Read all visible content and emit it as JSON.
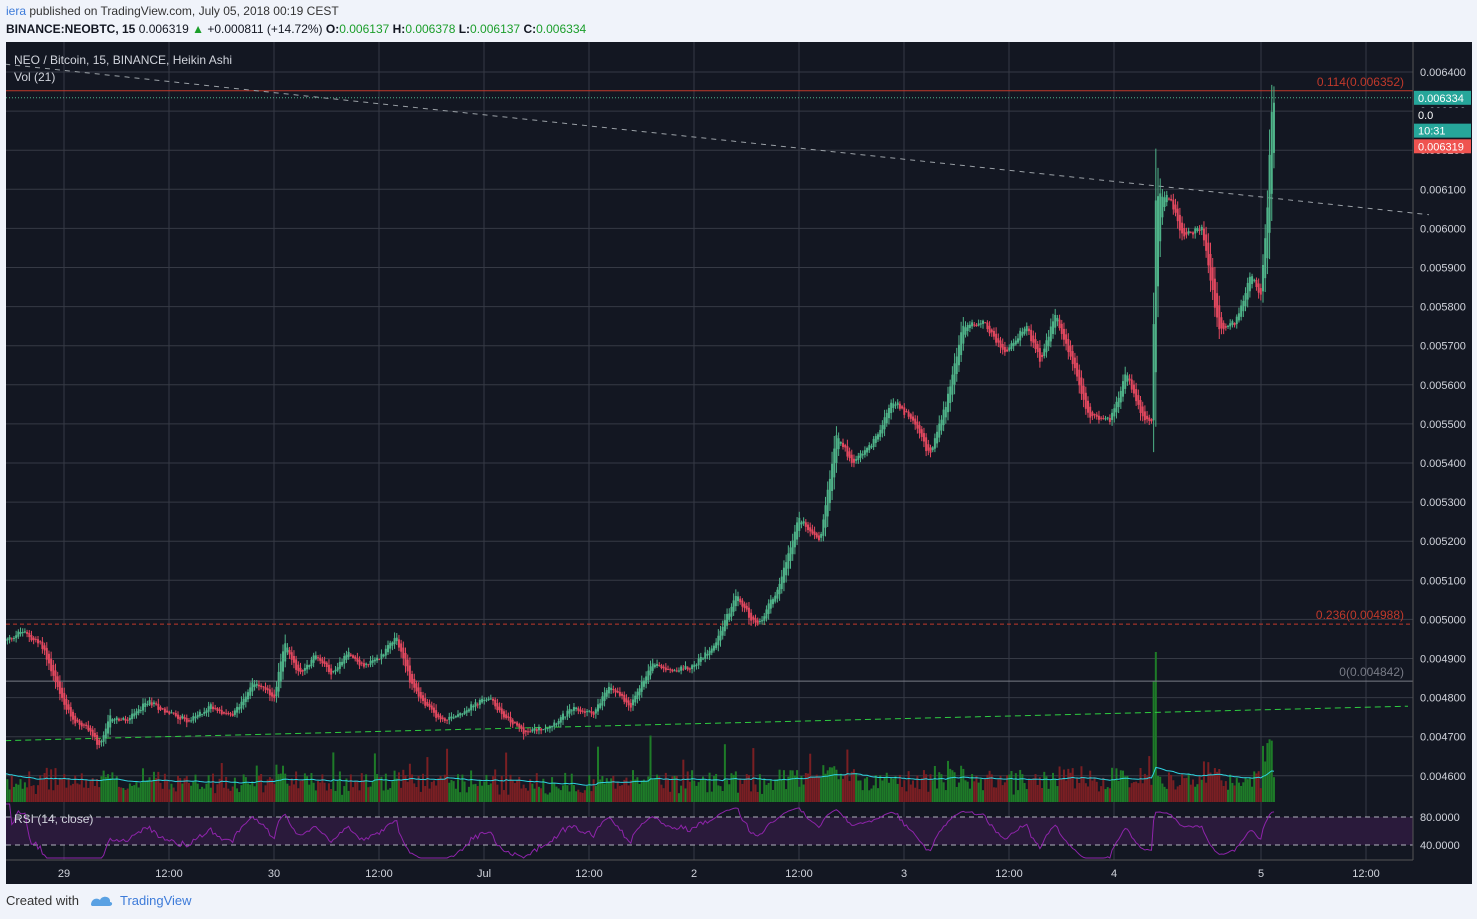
{
  "header": {
    "publisher": "iera",
    "published_text": "published on TradingView.com, July 05, 2018 00:19 CEST",
    "symbol": "BINANCE:NEOBTC, 15",
    "last": "0.006319",
    "arrow": "▲",
    "change": "+0.000811 (+14.72%)",
    "o_label": "O:",
    "o": "0.006137",
    "h_label": "H:",
    "h": "0.006378",
    "l_label": "L:",
    "l": "0.006137",
    "c_label": "C:",
    "c": "0.006334"
  },
  "chart_data": {
    "type": "candlestick",
    "title": "NEO / Bitcoin, 15, BINANCE, Heikin Ashi",
    "volume_label": "Vol (21)",
    "rsi_label": "RSI (14, close)",
    "ylim": [
      0.00453,
      0.00643
    ],
    "y_ticks": [
      "0.006400",
      "0.006300",
      "0.006200",
      "0.006100",
      "0.006000",
      "0.005900",
      "0.005800",
      "0.005700",
      "0.005600",
      "0.005500",
      "0.005400",
      "0.005300",
      "0.005200",
      "0.005100",
      "0.005000",
      "0.004900",
      "0.004800",
      "0.004700",
      "0.004600"
    ],
    "x_ticks": [
      {
        "label": "29",
        "t": 0.0
      },
      {
        "label": "12:00",
        "t": 0.5
      },
      {
        "label": "30",
        "t": 1.0
      },
      {
        "label": "12:00",
        "t": 1.5
      },
      {
        "label": "Jul",
        "t": 2.0
      },
      {
        "label": "12:00",
        "t": 2.5
      },
      {
        "label": "2",
        "t": 3.0
      },
      {
        "label": "12:00",
        "t": 3.5
      },
      {
        "label": "3",
        "t": 4.0
      },
      {
        "label": "12:00",
        "t": 4.5
      },
      {
        "label": "4",
        "t": 5.0
      },
      {
        "label": "5",
        "t": 5.7
      },
      {
        "label": "12:00",
        "t": 6.2
      }
    ],
    "price_path": [
      [
        -0.28,
        0.004945
      ],
      [
        -0.2,
        0.00497
      ],
      [
        -0.1,
        0.00493
      ],
      [
        -0.05,
        0.00485
      ],
      [
        0.0,
        0.00478
      ],
      [
        0.05,
        0.00474
      ],
      [
        0.12,
        0.00472
      ],
      [
        0.17,
        0.00467
      ],
      [
        0.22,
        0.00475
      ],
      [
        0.3,
        0.00474
      ],
      [
        0.4,
        0.00479
      ],
      [
        0.5,
        0.00476
      ],
      [
        0.6,
        0.00474
      ],
      [
        0.7,
        0.00478
      ],
      [
        0.8,
        0.00475
      ],
      [
        0.9,
        0.00484
      ],
      [
        1.0,
        0.0048
      ],
      [
        1.05,
        0.00494
      ],
      [
        1.12,
        0.00486
      ],
      [
        1.2,
        0.00491
      ],
      [
        1.28,
        0.00486
      ],
      [
        1.35,
        0.00492
      ],
      [
        1.42,
        0.00488
      ],
      [
        1.5,
        0.0049
      ],
      [
        1.58,
        0.00496
      ],
      [
        1.65,
        0.00484
      ],
      [
        1.72,
        0.00478
      ],
      [
        1.8,
        0.00474
      ],
      [
        1.88,
        0.00476
      ],
      [
        1.95,
        0.00478
      ],
      [
        2.02,
        0.0048
      ],
      [
        2.12,
        0.00474
      ],
      [
        2.2,
        0.00471
      ],
      [
        2.32,
        0.00473
      ],
      [
        2.42,
        0.00477
      ],
      [
        2.52,
        0.00476
      ],
      [
        2.6,
        0.00483
      ],
      [
        2.7,
        0.00478
      ],
      [
        2.8,
        0.00489
      ],
      [
        2.9,
        0.00487
      ],
      [
        3.0,
        0.00488
      ],
      [
        3.1,
        0.00494
      ],
      [
        3.2,
        0.00506
      ],
      [
        3.3,
        0.00498
      ],
      [
        3.4,
        0.00508
      ],
      [
        3.5,
        0.00526
      ],
      [
        3.6,
        0.0052
      ],
      [
        3.68,
        0.00548
      ],
      [
        3.75,
        0.0054
      ],
      [
        3.85,
        0.00545
      ],
      [
        3.95,
        0.00556
      ],
      [
        4.05,
        0.0055
      ],
      [
        4.12,
        0.00542
      ],
      [
        4.2,
        0.00555
      ],
      [
        4.28,
        0.00575
      ],
      [
        4.38,
        0.00576
      ],
      [
        4.48,
        0.00568
      ],
      [
        4.58,
        0.00575
      ],
      [
        4.65,
        0.00566
      ],
      [
        4.72,
        0.00578
      ],
      [
        4.8,
        0.00566
      ],
      [
        4.88,
        0.00552
      ],
      [
        4.98,
        0.00551
      ],
      [
        5.06,
        0.00563
      ],
      [
        5.13,
        0.00552
      ],
      [
        5.18,
        0.0055
      ],
      [
        5.2,
        0.00609
      ],
      [
        5.27,
        0.00608
      ],
      [
        5.32,
        0.00598
      ],
      [
        5.42,
        0.006
      ],
      [
        5.5,
        0.00574
      ],
      [
        5.58,
        0.00576
      ],
      [
        5.65,
        0.00588
      ],
      [
        5.7,
        0.00583
      ],
      [
        5.73,
        0.00605
      ],
      [
        5.75,
        0.0063
      ],
      [
        5.77,
        0.006334
      ]
    ],
    "fib_levels": [
      {
        "label": "0.114(0.006352)",
        "value": 0.006352,
        "color": "#c0392b"
      },
      {
        "label": "0.236(0.004988)",
        "value": 0.004988,
        "color": "#c0392b"
      },
      {
        "label": "0(0.004842)",
        "value": 0.004842,
        "color": "#787b86"
      }
    ],
    "price_tags": [
      {
        "label": "0.006334",
        "color": "#26a69a",
        "value": 0.006334
      },
      {
        "label": "0.0",
        "color": "#ffffff",
        "value": 0.00629
      },
      {
        "label": "10:31",
        "color": "#26a69a",
        "value": 0.00625
      },
      {
        "label": "0.006319",
        "color": "#ef5350",
        "value": 0.00621
      }
    ],
    "trendlines": [
      {
        "name": "descending",
        "from": [
          -0.28,
          0.00642
        ],
        "to": [
          6.5,
          0.006035
        ],
        "color": "#9aa0a6",
        "dash": "5,5"
      },
      {
        "name": "ascending",
        "from": [
          -0.28,
          0.00469
        ],
        "to": [
          6.4,
          0.004778
        ],
        "color": "#2ecc40",
        "dash": "6,4"
      }
    ],
    "rsi_levels": [
      {
        "label": "80.0000",
        "value": 80
      },
      {
        "label": "40.0000",
        "value": 40
      }
    ],
    "colors": {
      "background": "#131722",
      "grid": "#363a45",
      "up": "#4fb389",
      "down": "#e3485f",
      "volume_up": "#1e7b28",
      "volume_down": "#7a1f23",
      "volume_ma": "#2fd4e0",
      "rsi_line": "#8e24aa",
      "rsi_band": "#2a1a3b",
      "axis_text": "#d1d4dc"
    }
  },
  "footer": {
    "created_with": "Created with",
    "brand": "TradingView"
  }
}
